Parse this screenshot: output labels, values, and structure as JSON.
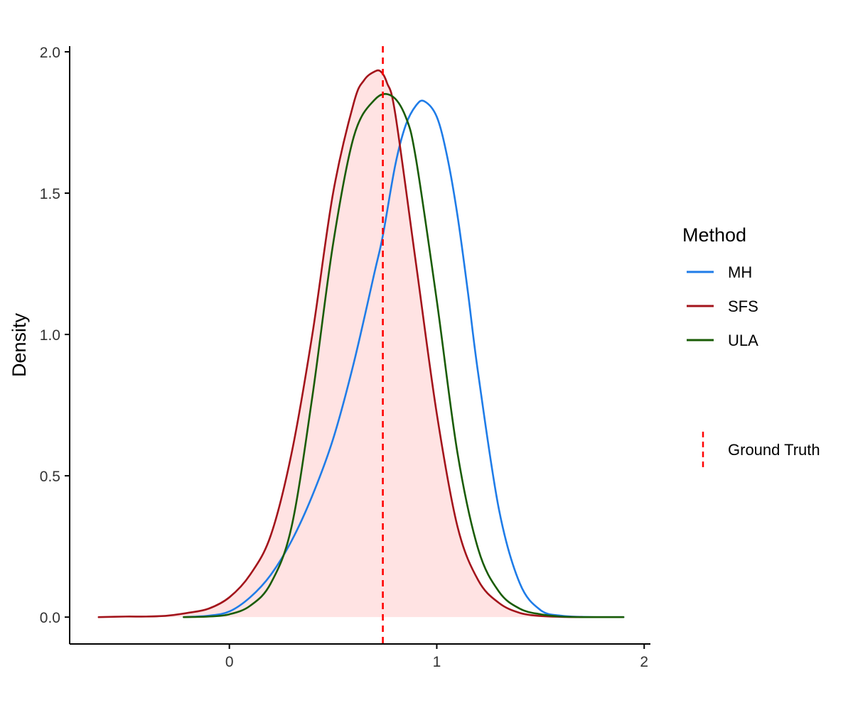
{
  "chart_data": {
    "type": "line",
    "title": "",
    "xlabel": "",
    "ylabel": "Density",
    "xlim": [
      -0.77,
      2.03
    ],
    "ylim": [
      -0.095,
      2.02
    ],
    "x_ticks": [
      0,
      1,
      2
    ],
    "y_ticks": [
      0.0,
      0.5,
      1.0,
      1.5,
      2.0
    ],
    "x_tick_labels": [
      "0",
      "1",
      "2"
    ],
    "y_tick_labels": [
      "0.0",
      "0.5",
      "1.0",
      "1.5",
      "2.0"
    ],
    "grid": false,
    "fill_color": "#ffe3e3",
    "filled_series": "SFS",
    "legend": {
      "title": "Method",
      "placement": "right",
      "entries": [
        {
          "label": "MH",
          "color": "#1f7ce8"
        },
        {
          "label": "SFS",
          "color": "#a3141b"
        },
        {
          "label": "ULA",
          "color": "#1a5c06"
        }
      ],
      "reference_entry": {
        "label": "Ground Truth",
        "color": "#ff0000"
      }
    },
    "reference_line": {
      "label": "Ground Truth",
      "x": 0.74,
      "color": "#ff0000",
      "style": "dashed"
    },
    "series": [
      {
        "name": "MH",
        "color": "#1f7ce8",
        "x": [
          -0.22,
          -0.1,
          0.0,
          0.1,
          0.2,
          0.3,
          0.4,
          0.5,
          0.6,
          0.7,
          0.74,
          0.8,
          0.85,
          0.9,
          0.94,
          1.0,
          1.05,
          1.1,
          1.15,
          1.2,
          1.3,
          1.4,
          1.5,
          1.6,
          1.7,
          1.8,
          1.9
        ],
        "y": [
          0.0,
          0.005,
          0.02,
          0.07,
          0.15,
          0.27,
          0.43,
          0.63,
          0.9,
          1.22,
          1.35,
          1.6,
          1.74,
          1.81,
          1.825,
          1.77,
          1.63,
          1.42,
          1.15,
          0.86,
          0.38,
          0.12,
          0.025,
          0.005,
          0.001,
          0.0,
          0.0
        ]
      },
      {
        "name": "SFS",
        "color": "#a3141b",
        "x": [
          -0.63,
          -0.5,
          -0.4,
          -0.3,
          -0.2,
          -0.1,
          0.0,
          0.1,
          0.2,
          0.3,
          0.4,
          0.5,
          0.6,
          0.65,
          0.7,
          0.73,
          0.76,
          0.8,
          0.9,
          1.0,
          1.1,
          1.2,
          1.3,
          1.4,
          1.5,
          1.6,
          1.7
        ],
        "y": [
          0.0,
          0.002,
          0.002,
          0.005,
          0.015,
          0.03,
          0.07,
          0.15,
          0.29,
          0.58,
          1.0,
          1.5,
          1.82,
          1.9,
          1.93,
          1.93,
          1.89,
          1.78,
          1.25,
          0.72,
          0.32,
          0.13,
          0.05,
          0.015,
          0.004,
          0.001,
          0.0
        ]
      },
      {
        "name": "ULA",
        "color": "#1a5c06",
        "x": [
          -0.22,
          -0.1,
          0.0,
          0.1,
          0.2,
          0.3,
          0.4,
          0.5,
          0.6,
          0.7,
          0.78,
          0.85,
          0.9,
          1.0,
          1.1,
          1.2,
          1.3,
          1.4,
          1.5,
          1.6,
          1.7,
          1.8,
          1.9
        ],
        "y": [
          0.0,
          0.002,
          0.01,
          0.04,
          0.12,
          0.32,
          0.78,
          1.32,
          1.7,
          1.83,
          1.845,
          1.77,
          1.62,
          1.12,
          0.58,
          0.24,
          0.09,
          0.03,
          0.01,
          0.002,
          0.0,
          0.0,
          0.0
        ]
      }
    ]
  }
}
